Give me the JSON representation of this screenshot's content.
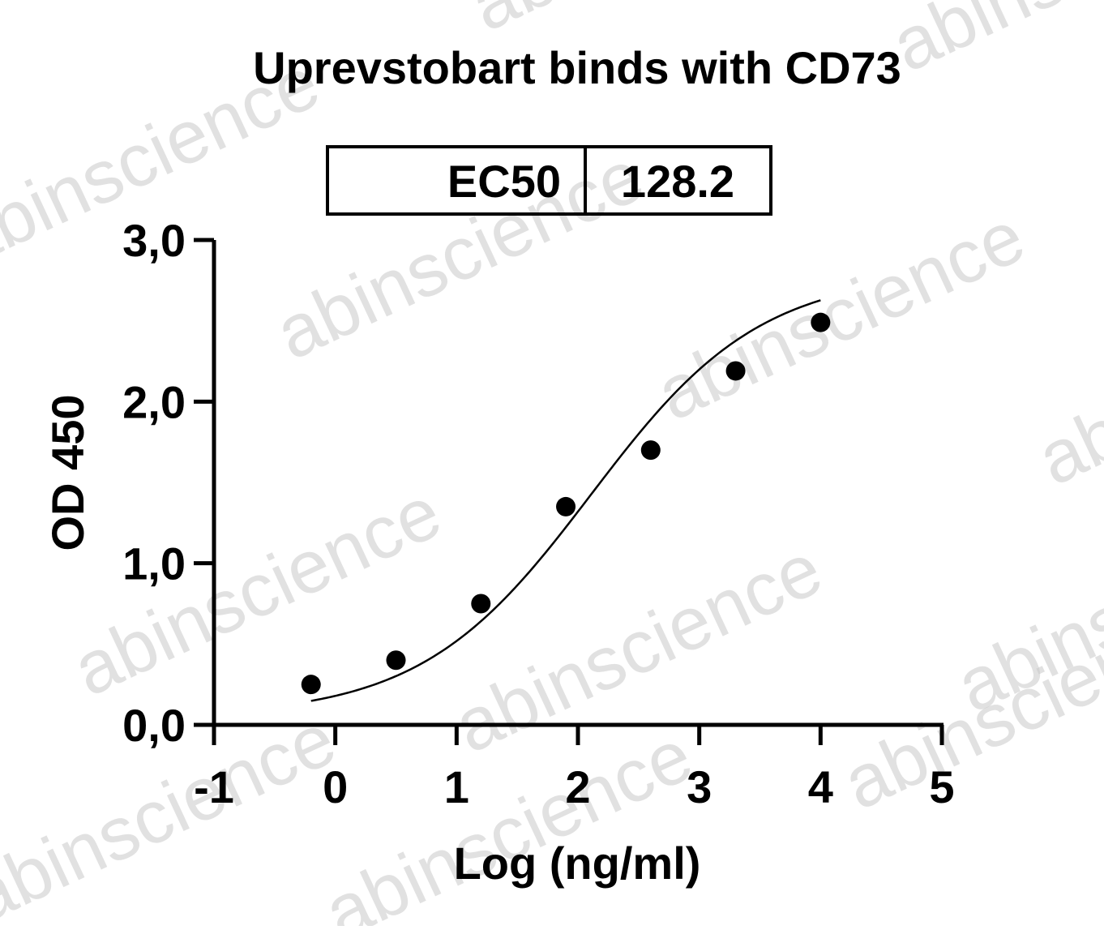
{
  "watermark": {
    "text": "abinscience",
    "color": "#c8c8c8"
  },
  "chart_data": {
    "type": "scatter",
    "title": "Uprevstobart binds with CD73",
    "xlabel": "Log (ng/ml)",
    "ylabel": "OD 450",
    "xlim": [
      -1,
      5
    ],
    "ylim": [
      0,
      3
    ],
    "xticks": [
      -1,
      0,
      1,
      2,
      3,
      4,
      5
    ],
    "xtick_labels": [
      "-1",
      "0",
      "1",
      "2",
      "3",
      "4",
      "5"
    ],
    "yticks": [
      0,
      1,
      2,
      3
    ],
    "ytick_labels": [
      "0,0",
      "1,0",
      "2,0",
      "3,0"
    ],
    "grid": false,
    "annotation_table": {
      "label": "EC50",
      "value": "128.2"
    },
    "series": [
      {
        "points_x": [
          -0.2,
          0.5,
          1.2,
          1.9,
          2.6,
          3.3,
          4.0
        ],
        "points_y": [
          0.25,
          0.4,
          0.75,
          1.35,
          1.7,
          2.19,
          2.49
        ],
        "fit": "four-parameter logistic",
        "fit_range": [
          -0.2,
          4.0
        ],
        "color": "#000000"
      }
    ]
  }
}
